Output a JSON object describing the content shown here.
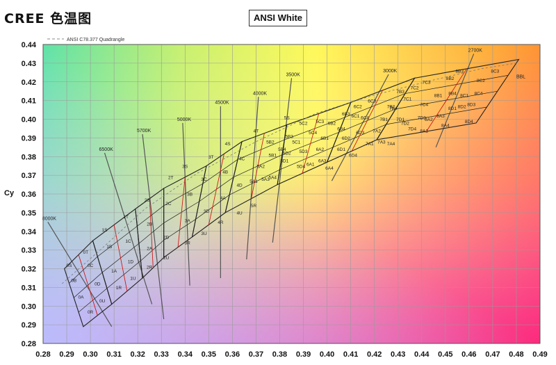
{
  "page_title": "CREE 色温图",
  "chart_data": {
    "type": "scatter",
    "title": "ANSI White",
    "legend": {
      "label": "ANSI C78.377 Quadrangle",
      "position": "top-left"
    },
    "ylabel": "Cy",
    "xlabel": "",
    "xlim": [
      0.28,
      0.49
    ],
    "ylim": [
      0.28,
      0.44
    ],
    "xticks": [
      "0.28",
      "0.29",
      "0.30",
      "0.31",
      "0.32",
      "0.33",
      "0.34",
      "0.35",
      "0.36",
      "0.37",
      "0.38",
      "0.39",
      "0.40",
      "0.41",
      "0.42",
      "0.43",
      "0.44",
      "0.45",
      "0.46",
      "0.47",
      "0.48",
      "0.49"
    ],
    "yticks": [
      "0.28",
      "0.29",
      "0.30",
      "0.31",
      "0.32",
      "0.33",
      "0.34",
      "0.35",
      "0.36",
      "0.37",
      "0.38",
      "0.39",
      "0.40",
      "0.41",
      "0.42",
      "0.43",
      "0.44"
    ],
    "grid": true,
    "colors": {
      "grid": "#9a9a9a",
      "quadrangle": "#222222",
      "bin_line": "#d01818",
      "isotherm": "#555555"
    },
    "bbl": {
      "label": "BBL",
      "x": [
        0.288,
        0.305,
        0.323,
        0.345,
        0.37,
        0.395,
        0.42,
        0.445,
        0.465,
        0.48
      ],
      "y": [
        0.312,
        0.331,
        0.352,
        0.371,
        0.388,
        0.403,
        0.413,
        0.421,
        0.427,
        0.43
      ]
    },
    "isotherms": [
      {
        "label": "8000K",
        "x": [
          0.282,
          0.309
        ],
        "y": [
          0.345,
          0.289
        ]
      },
      {
        "label": "6500K",
        "x": [
          0.306,
          0.326
        ],
        "y": [
          0.382,
          0.301
        ]
      },
      {
        "label": "5700K",
        "x": [
          0.322,
          0.331
        ],
        "y": [
          0.392,
          0.293
        ]
      },
      {
        "label": "5000K",
        "x": [
          0.339,
          0.342
        ],
        "y": [
          0.398,
          0.311
        ]
      },
      {
        "label": "4500K",
        "x": [
          0.355,
          0.355
        ],
        "y": [
          0.407,
          0.315
        ]
      },
      {
        "label": "4000K",
        "x": [
          0.371,
          0.366
        ],
        "y": [
          0.412,
          0.325
        ]
      },
      {
        "label": "3500K",
        "x": [
          0.385,
          0.377
        ],
        "y": [
          0.422,
          0.334
        ]
      },
      {
        "label": "3000K",
        "x": [
          0.426,
          0.402
        ],
        "y": [
          0.424,
          0.367
        ]
      },
      {
        "label": "2700K",
        "x": [
          0.462,
          0.446
        ],
        "y": [
          0.435,
          0.385
        ]
      }
    ],
    "quadrangles": [
      {
        "label": "8000K",
        "corners": [
          [
            0.289,
            0.32
          ],
          [
            0.301,
            0.335
          ],
          [
            0.309,
            0.301
          ],
          [
            0.297,
            0.289
          ]
        ]
      },
      {
        "label": "6500K",
        "corners": [
          [
            0.301,
            0.335
          ],
          [
            0.319,
            0.352
          ],
          [
            0.322,
            0.315
          ],
          [
            0.309,
            0.301
          ]
        ]
      },
      {
        "label": "5700K",
        "corners": [
          [
            0.319,
            0.352
          ],
          [
            0.331,
            0.363
          ],
          [
            0.331,
            0.326
          ],
          [
            0.322,
            0.315
          ]
        ]
      },
      {
        "label": "5000K",
        "corners": [
          [
            0.331,
            0.363
          ],
          [
            0.349,
            0.375
          ],
          [
            0.343,
            0.337
          ],
          [
            0.331,
            0.326
          ]
        ]
      },
      {
        "label": "4500K",
        "corners": [
          [
            0.349,
            0.375
          ],
          [
            0.364,
            0.388
          ],
          [
            0.357,
            0.35
          ],
          [
            0.343,
            0.337
          ]
        ]
      },
      {
        "label": "4000K",
        "corners": [
          [
            0.364,
            0.388
          ],
          [
            0.383,
            0.397
          ],
          [
            0.379,
            0.365
          ],
          [
            0.357,
            0.35
          ]
        ]
      },
      {
        "label": "3500K",
        "corners": [
          [
            0.383,
            0.397
          ],
          [
            0.41,
            0.409
          ],
          [
            0.4,
            0.377
          ],
          [
            0.379,
            0.365
          ]
        ]
      },
      {
        "label": "3000K",
        "corners": [
          [
            0.41,
            0.409
          ],
          [
            0.437,
            0.422
          ],
          [
            0.421,
            0.389
          ],
          [
            0.4,
            0.377
          ]
        ]
      },
      {
        "label": "2700K",
        "corners": [
          [
            0.437,
            0.422
          ],
          [
            0.481,
            0.432
          ],
          [
            0.463,
            0.398
          ],
          [
            0.421,
            0.389
          ]
        ]
      }
    ],
    "bins": [
      {
        "label": "0S",
        "x": 0.291,
        "y": 0.321
      },
      {
        "label": "0T",
        "x": 0.298,
        "y": 0.328
      },
      {
        "label": "0C",
        "x": 0.3,
        "y": 0.321
      },
      {
        "label": "0B",
        "x": 0.293,
        "y": 0.313
      },
      {
        "label": "0D",
        "x": 0.303,
        "y": 0.311
      },
      {
        "label": "0A",
        "x": 0.296,
        "y": 0.304
      },
      {
        "label": "0U",
        "x": 0.305,
        "y": 0.302
      },
      {
        "label": "0R",
        "x": 0.3,
        "y": 0.296
      },
      {
        "label": "1S",
        "x": 0.306,
        "y": 0.34
      },
      {
        "label": "1B",
        "x": 0.308,
        "y": 0.331
      },
      {
        "label": "1A",
        "x": 0.31,
        "y": 0.318
      },
      {
        "label": "1R",
        "x": 0.312,
        "y": 0.309
      },
      {
        "label": "1T",
        "x": 0.315,
        "y": 0.347
      },
      {
        "label": "1C",
        "x": 0.316,
        "y": 0.334
      },
      {
        "label": "1D",
        "x": 0.317,
        "y": 0.323
      },
      {
        "label": "1U",
        "x": 0.318,
        "y": 0.314
      },
      {
        "label": "2S",
        "x": 0.324,
        "y": 0.356
      },
      {
        "label": "2B",
        "x": 0.325,
        "y": 0.343
      },
      {
        "label": "2A",
        "x": 0.325,
        "y": 0.33
      },
      {
        "label": "2R",
        "x": 0.325,
        "y": 0.32
      },
      {
        "label": "2T",
        "x": 0.334,
        "y": 0.368
      },
      {
        "label": "2C",
        "x": 0.333,
        "y": 0.354
      },
      {
        "label": "2D",
        "x": 0.332,
        "y": 0.336
      },
      {
        "label": "2U",
        "x": 0.332,
        "y": 0.325
      },
      {
        "label": "3S",
        "x": 0.34,
        "y": 0.374
      },
      {
        "label": "3B",
        "x": 0.342,
        "y": 0.359
      },
      {
        "label": "3A",
        "x": 0.341,
        "y": 0.345
      },
      {
        "label": "3R",
        "x": 0.341,
        "y": 0.333
      },
      {
        "label": "3T",
        "x": 0.351,
        "y": 0.379
      },
      {
        "label": "3C",
        "x": 0.348,
        "y": 0.367
      },
      {
        "label": "3D",
        "x": 0.349,
        "y": 0.35
      },
      {
        "label": "3U",
        "x": 0.348,
        "y": 0.338
      },
      {
        "label": "4S",
        "x": 0.358,
        "y": 0.386
      },
      {
        "label": "4B",
        "x": 0.357,
        "y": 0.371
      },
      {
        "label": "4A",
        "x": 0.356,
        "y": 0.357
      },
      {
        "label": "4R",
        "x": 0.355,
        "y": 0.344
      },
      {
        "label": "4T",
        "x": 0.37,
        "y": 0.393
      },
      {
        "label": "4C",
        "x": 0.364,
        "y": 0.378
      },
      {
        "label": "4D",
        "x": 0.363,
        "y": 0.364
      },
      {
        "label": "4U",
        "x": 0.363,
        "y": 0.349
      },
      {
        "label": "5S",
        "x": 0.383,
        "y": 0.4
      },
      {
        "label": "5R",
        "x": 0.369,
        "y": 0.353
      },
      {
        "label": "5A1",
        "x": 0.369,
        "y": 0.366
      },
      {
        "label": "5A2",
        "x": 0.372,
        "y": 0.374
      },
      {
        "label": "5A3",
        "x": 0.374,
        "y": 0.367
      },
      {
        "label": "5A4",
        "x": 0.377,
        "y": 0.368
      },
      {
        "label": "5B1",
        "x": 0.377,
        "y": 0.38
      },
      {
        "label": "5B2",
        "x": 0.376,
        "y": 0.387
      },
      {
        "label": "5B3",
        "x": 0.384,
        "y": 0.39
      },
      {
        "label": "5B4",
        "x": 0.381,
        "y": 0.383
      },
      {
        "label": "5C1",
        "x": 0.387,
        "y": 0.387
      },
      {
        "label": "5C2",
        "x": 0.39,
        "y": 0.397
      },
      {
        "label": "5C3",
        "x": 0.397,
        "y": 0.398
      },
      {
        "label": "5C4",
        "x": 0.394,
        "y": 0.392
      },
      {
        "label": "5D1",
        "x": 0.382,
        "y": 0.377
      },
      {
        "label": "5D2",
        "x": 0.383,
        "y": 0.381
      },
      {
        "label": "5D3",
        "x": 0.39,
        "y": 0.382
      },
      {
        "label": "5D4",
        "x": 0.389,
        "y": 0.374
      },
      {
        "label": "6A1",
        "x": 0.393,
        "y": 0.375
      },
      {
        "label": "6A2",
        "x": 0.397,
        "y": 0.383
      },
      {
        "label": "6A3",
        "x": 0.398,
        "y": 0.377
      },
      {
        "label": "6A4",
        "x": 0.401,
        "y": 0.373
      },
      {
        "label": "6B1",
        "x": 0.399,
        "y": 0.389
      },
      {
        "label": "6B2",
        "x": 0.402,
        "y": 0.397
      },
      {
        "label": "6B3",
        "x": 0.408,
        "y": 0.402
      },
      {
        "label": "6B4",
        "x": 0.406,
        "y": 0.394
      },
      {
        "label": "6C1",
        "x": 0.412,
        "y": 0.401
      },
      {
        "label": "6C2",
        "x": 0.413,
        "y": 0.406
      },
      {
        "label": "6C3",
        "x": 0.419,
        "y": 0.409
      },
      {
        "label": "6C4",
        "x": 0.416,
        "y": 0.4
      },
      {
        "label": "6D1",
        "x": 0.406,
        "y": 0.383
      },
      {
        "label": "6D2",
        "x": 0.408,
        "y": 0.389
      },
      {
        "label": "6D3",
        "x": 0.414,
        "y": 0.392
      },
      {
        "label": "6D4",
        "x": 0.411,
        "y": 0.38
      },
      {
        "label": "7A1",
        "x": 0.418,
        "y": 0.386
      },
      {
        "label": "7A2",
        "x": 0.421,
        "y": 0.393
      },
      {
        "label": "7A3",
        "x": 0.423,
        "y": 0.387
      },
      {
        "label": "7A4",
        "x": 0.427,
        "y": 0.386
      },
      {
        "label": "7B1",
        "x": 0.424,
        "y": 0.399
      },
      {
        "label": "7B2",
        "x": 0.427,
        "y": 0.406
      },
      {
        "label": "7B3",
        "x": 0.431,
        "y": 0.414
      },
      {
        "label": "7B4",
        "x": 0.428,
        "y": 0.405
      },
      {
        "label": "7C1",
        "x": 0.434,
        "y": 0.41
      },
      {
        "label": "7C2",
        "x": 0.437,
        "y": 0.416
      },
      {
        "label": "7C3",
        "x": 0.442,
        "y": 0.419
      },
      {
        "label": "7C4",
        "x": 0.441,
        "y": 0.407
      },
      {
        "label": "7D1",
        "x": 0.431,
        "y": 0.399
      },
      {
        "label": "7D2",
        "x": 0.433,
        "y": 0.397
      },
      {
        "label": "7D3",
        "x": 0.44,
        "y": 0.4
      },
      {
        "label": "7D4",
        "x": 0.436,
        "y": 0.394
      },
      {
        "label": "8A1",
        "x": 0.441,
        "y": 0.393
      },
      {
        "label": "8A2",
        "x": 0.443,
        "y": 0.399
      },
      {
        "label": "8A3",
        "x": 0.448,
        "y": 0.401
      },
      {
        "label": "8A4",
        "x": 0.45,
        "y": 0.396
      },
      {
        "label": "8B1",
        "x": 0.447,
        "y": 0.412
      },
      {
        "label": "8B2",
        "x": 0.452,
        "y": 0.421
      },
      {
        "label": "8B3",
        "x": 0.456,
        "y": 0.425
      },
      {
        "label": "8B4",
        "x": 0.453,
        "y": 0.413
      },
      {
        "label": "8C1",
        "x": 0.458,
        "y": 0.412
      },
      {
        "label": "8C2",
        "x": 0.465,
        "y": 0.42
      },
      {
        "label": "8C3",
        "x": 0.471,
        "y": 0.425
      },
      {
        "label": "8C4",
        "x": 0.464,
        "y": 0.413
      },
      {
        "label": "8D1",
        "x": 0.453,
        "y": 0.405
      },
      {
        "label": "8D2",
        "x": 0.457,
        "y": 0.406
      },
      {
        "label": "8D3",
        "x": 0.461,
        "y": 0.407
      },
      {
        "label": "8D4",
        "x": 0.46,
        "y": 0.398
      }
    ]
  }
}
